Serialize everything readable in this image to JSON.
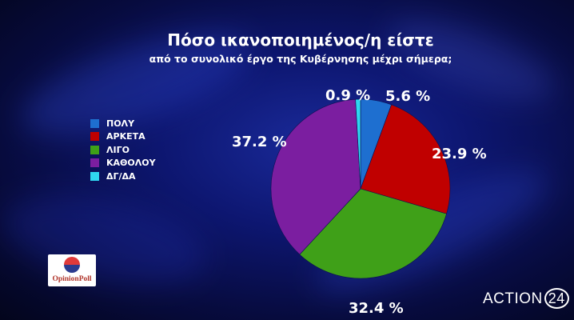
{
  "header": {
    "title": "Πόσο ικανοποιημένος/η είστε",
    "subtitle": "από το συνολικό έργο της Κυβέρνησης μέχρι σήμερα;"
  },
  "chart_data": {
    "type": "pie",
    "title": "Πόσο ικανοποιημένος/η είστε",
    "subtitle": "από το συνολικό έργο της Κυβέρνησης μέχρι σήμερα;",
    "categories": [
      "ΠΟΛΥ",
      "ΑΡΚΕΤΑ",
      "ΛΙΓΟ",
      "ΚΑΘΟΛΟΥ",
      "ΔΓ/ΔΑ"
    ],
    "values": [
      5.6,
      23.9,
      32.4,
      37.2,
      0.9
    ],
    "labels": [
      "5.6 %",
      "23.9 %",
      "32.4 %",
      "37.2 %",
      "0.9 %"
    ],
    "colors": [
      "#1e6fd0",
      "#c00000",
      "#3fa018",
      "#7b1ea0",
      "#2fd6f0"
    ],
    "legend": "left"
  },
  "logo": {
    "text": "OpinionPoll"
  },
  "brand": {
    "name": "ACTION",
    "number": "24"
  }
}
